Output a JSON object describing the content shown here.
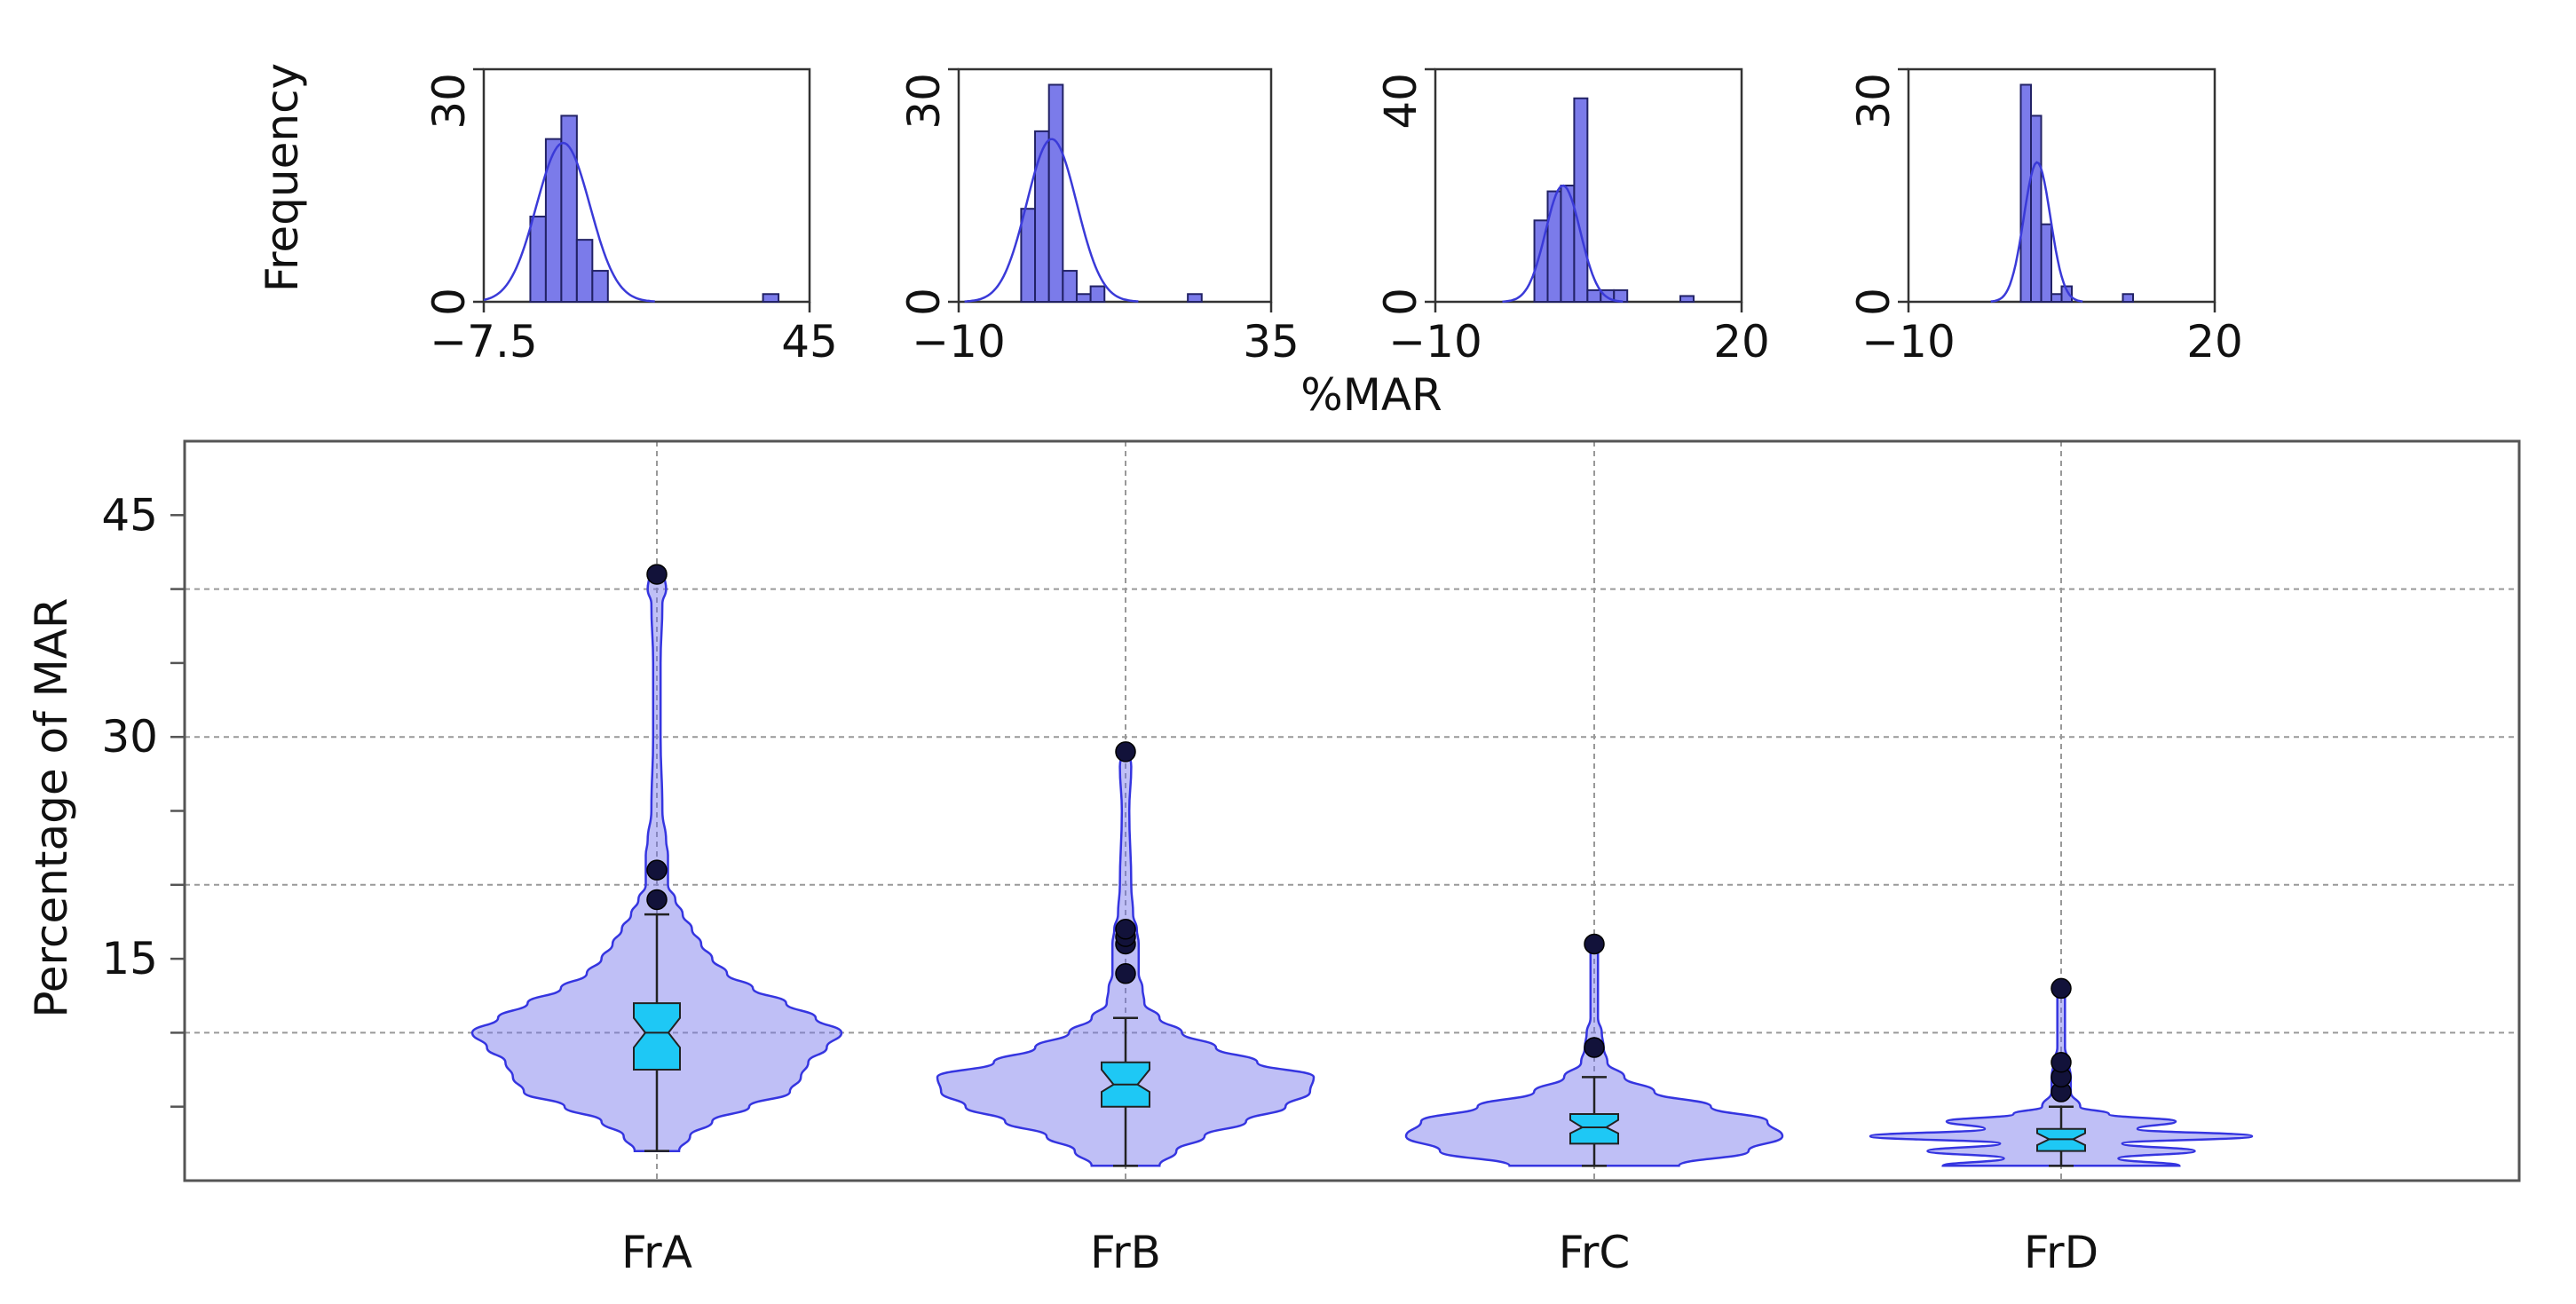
{
  "chart_data": [
    {
      "type": "histogram",
      "panel": "FrA",
      "ylabel": "Frequency",
      "xticks": [
        "−7.5",
        "45"
      ],
      "xlim": [
        -7.5,
        45
      ],
      "yticks": [
        "0",
        "30"
      ],
      "ylim": [
        0,
        30
      ],
      "bin_width": 2.5,
      "bins": [
        {
          "start": 0,
          "count": 11
        },
        {
          "start": 2.5,
          "count": 21
        },
        {
          "start": 5,
          "count": 24
        },
        {
          "start": 7.5,
          "count": 8
        },
        {
          "start": 10,
          "count": 4
        },
        {
          "start": 12.5,
          "count": 0
        },
        {
          "start": 15,
          "count": 0
        },
        {
          "start": 17.5,
          "count": 0
        },
        {
          "start": 37.5,
          "count": 1
        }
      ],
      "normal_fit": {
        "mean": 5.3,
        "sd": 4.3,
        "peak": 20.5
      }
    },
    {
      "type": "histogram",
      "panel": "FrB",
      "xticks": [
        "−10",
        "35"
      ],
      "xlim": [
        -10,
        35
      ],
      "yticks": [
        "0",
        "30"
      ],
      "ylim": [
        0,
        30
      ],
      "bin_width": 2,
      "bins": [
        {
          "start": -1,
          "count": 12
        },
        {
          "start": 1,
          "count": 22
        },
        {
          "start": 3,
          "count": 28
        },
        {
          "start": 5,
          "count": 4
        },
        {
          "start": 7,
          "count": 1
        },
        {
          "start": 9,
          "count": 2
        },
        {
          "start": 23,
          "count": 1
        }
      ],
      "normal_fit": {
        "mean": 3.4,
        "sd": 3.6,
        "peak": 21
      }
    },
    {
      "type": "histogram",
      "panel": "FrC",
      "xticks": [
        "−10",
        "20"
      ],
      "xlim": [
        -10,
        20
      ],
      "yticks": [
        "0",
        "40"
      ],
      "ylim": [
        0,
        40
      ],
      "bin_width": 1.3,
      "bins": [
        {
          "start": -0.3,
          "count": 14
        },
        {
          "start": 1.0,
          "count": 19
        },
        {
          "start": 2.3,
          "count": 20
        },
        {
          "start": 3.6,
          "count": 35
        },
        {
          "start": 4.9,
          "count": 2
        },
        {
          "start": 6.2,
          "count": 2
        },
        {
          "start": 7.5,
          "count": 2
        },
        {
          "start": 14.0,
          "count": 1
        }
      ],
      "normal_fit": {
        "mean": 2.5,
        "sd": 1.7,
        "peak": 20
      }
    },
    {
      "type": "histogram",
      "panel": "FrD",
      "xticks": [
        "−10",
        "20"
      ],
      "xlim": [
        -10,
        20
      ],
      "yticks": [
        "0",
        "30"
      ],
      "ylim": [
        0,
        30
      ],
      "bin_width": 1,
      "bins": [
        {
          "start": 1,
          "count": 28
        },
        {
          "start": 2,
          "count": 24
        },
        {
          "start": 3,
          "count": 10
        },
        {
          "start": 4,
          "count": 1
        },
        {
          "start": 5,
          "count": 2
        },
        {
          "start": 11,
          "count": 1
        }
      ],
      "normal_fit": {
        "mean": 2.6,
        "sd": 1.3,
        "peak": 18
      }
    },
    {
      "type": "violin",
      "xlabel_shared_histograms": "%MAR",
      "ylabel": "Percentage of MAR",
      "ylim": [
        0,
        50
      ],
      "yticks": [
        15,
        30,
        45
      ],
      "grid": true,
      "categories": [
        "FrA",
        "FrB",
        "FrC",
        "FrD"
      ],
      "groups": [
        {
          "name": "FrA",
          "min": 2,
          "max": 41,
          "q1": 7.5,
          "median": 10,
          "q3": 12,
          "notch_low": 9,
          "notch_high": 11,
          "whisker_low": 2,
          "whisker_high": 18,
          "outliers": [
            19,
            21,
            41
          ],
          "density": [
            [
              2,
              0.12
            ],
            [
              3,
              0.18
            ],
            [
              4,
              0.3
            ],
            [
              5,
              0.5
            ],
            [
              6,
              0.72
            ],
            [
              7,
              0.78
            ],
            [
              8,
              0.82
            ],
            [
              9,
              0.92
            ],
            [
              10,
              1.0
            ],
            [
              11,
              0.86
            ],
            [
              12,
              0.7
            ],
            [
              13,
              0.52
            ],
            [
              14,
              0.38
            ],
            [
              15,
              0.3
            ],
            [
              16,
              0.24
            ],
            [
              17,
              0.19
            ],
            [
              18,
              0.14
            ],
            [
              19,
              0.1
            ],
            [
              20,
              0.06
            ],
            [
              21,
              0.06
            ],
            [
              22,
              0.06
            ],
            [
              23,
              0.05
            ],
            [
              25,
              0.03
            ],
            [
              30,
              0.02
            ],
            [
              35,
              0.02
            ],
            [
              39,
              0.03
            ],
            [
              40,
              0.05
            ],
            [
              41,
              0.04
            ]
          ]
        },
        {
          "name": "FrB",
          "min": 1,
          "max": 29,
          "q1": 5,
          "median": 6.5,
          "q3": 8,
          "notch_low": 6,
          "notch_high": 7.5,
          "whisker_low": 1,
          "whisker_high": 11,
          "outliers": [
            14,
            16,
            16.5,
            17,
            29
          ],
          "density": [
            [
              1,
              0.18
            ],
            [
              2,
              0.27
            ],
            [
              3,
              0.42
            ],
            [
              4,
              0.64
            ],
            [
              5,
              0.85
            ],
            [
              6,
              0.98
            ],
            [
              7,
              1.0
            ],
            [
              8,
              0.7
            ],
            [
              9,
              0.48
            ],
            [
              10,
              0.3
            ],
            [
              11,
              0.18
            ],
            [
              12,
              0.1
            ],
            [
              13,
              0.09
            ],
            [
              14,
              0.07
            ],
            [
              15,
              0.07
            ],
            [
              16,
              0.07
            ],
            [
              17,
              0.06
            ],
            [
              18,
              0.04
            ],
            [
              20,
              0.03
            ],
            [
              25,
              0.02
            ],
            [
              28,
              0.03
            ],
            [
              29,
              0.02
            ]
          ]
        },
        {
          "name": "FrC",
          "min": 1,
          "max": 16,
          "q1": 2.5,
          "median": 3.6,
          "q3": 4.5,
          "notch_low": 3.2,
          "notch_high": 4.1,
          "whisker_low": 1,
          "whisker_high": 7,
          "outliers": [
            9,
            16
          ],
          "density": [
            [
              1,
              0.45
            ],
            [
              2,
              0.82
            ],
            [
              3,
              1.0
            ],
            [
              4,
              0.92
            ],
            [
              5,
              0.62
            ],
            [
              6,
              0.32
            ],
            [
              7,
              0.16
            ],
            [
              8,
              0.07
            ],
            [
              9,
              0.05
            ],
            [
              10,
              0.04
            ],
            [
              11,
              0.02
            ],
            [
              13,
              0.02
            ],
            [
              15,
              0.02
            ],
            [
              16,
              0.02
            ]
          ]
        },
        {
          "name": "FrD",
          "min": 1,
          "max": 13,
          "q1": 2,
          "median": 2.8,
          "q3": 3.5,
          "notch_low": 2.4,
          "notch_high": 3.2,
          "whisker_low": 1,
          "whisker_high": 5,
          "outliers": [
            6,
            7,
            8,
            13
          ],
          "density": [
            [
              1,
              0.62
            ],
            [
              1.5,
              0.3
            ],
            [
              2,
              0.7
            ],
            [
              2.5,
              0.32
            ],
            [
              3,
              1.0
            ],
            [
              3.5,
              0.4
            ],
            [
              4,
              0.6
            ],
            [
              4.5,
              0.25
            ],
            [
              5,
              0.1
            ],
            [
              6,
              0.05
            ],
            [
              7,
              0.05
            ],
            [
              8,
              0.04
            ],
            [
              9,
              0.02
            ],
            [
              11,
              0.02
            ],
            [
              13,
              0.02
            ]
          ]
        }
      ]
    }
  ]
}
